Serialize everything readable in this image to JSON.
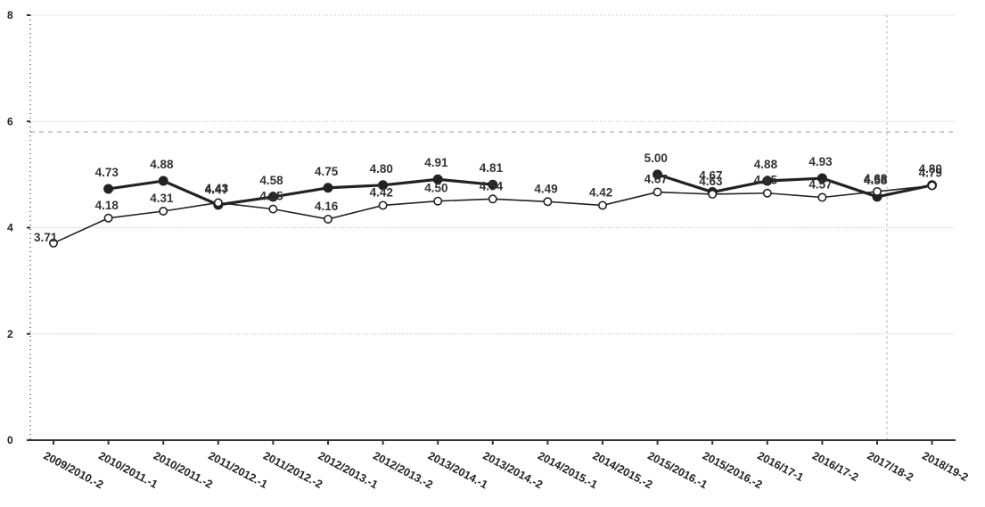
{
  "chart_data": {
    "type": "line",
    "title": "",
    "xlabel": "",
    "ylabel": "",
    "ylim": [
      0,
      8
    ],
    "yticks": [
      0,
      2,
      4,
      6,
      8
    ],
    "grid": true,
    "reference_line": 5.8,
    "categories": [
      "2009/2010.-2",
      "2010/2011.-1",
      "2010/2011.-2",
      "2011/2012.-1",
      "2011/2012.-2",
      "2012/2013.-1",
      "2012/2013.-2",
      "2013/2014.-1",
      "2013/2014.-2",
      "2014/2015.-1",
      "2014/2015.-2",
      "2015/2016.-1",
      "2015/2016.-2",
      "2016/17-1",
      "2016/17-2",
      "2017/18-2",
      "2018/19-2"
    ],
    "series": [
      {
        "style": "bold",
        "values": [
          null,
          4.73,
          4.88,
          4.43,
          4.58,
          4.75,
          4.8,
          4.91,
          4.81,
          null,
          null,
          5.0,
          4.67,
          4.88,
          4.93,
          4.58,
          4.8
        ],
        "labels": [
          "",
          "4.73",
          "4.88",
          "4.43",
          "4.58",
          "4.75",
          "4.80",
          "4.91",
          "4.81",
          "",
          "",
          "5.00",
          "4.67",
          "4.88",
          "4.93",
          "4.58",
          "4.80"
        ]
      },
      {
        "style": "thin",
        "values": [
          3.71,
          4.18,
          4.31,
          4.47,
          4.35,
          4.16,
          4.42,
          4.5,
          4.54,
          4.49,
          4.42,
          4.67,
          4.63,
          4.65,
          4.57,
          4.68,
          4.79
        ],
        "labels": [
          "3.71",
          "4.18",
          "4.31",
          "4.47",
          "4.35",
          "4.16",
          "4.42",
          "4.50",
          "4.54",
          "4.49",
          "4.42",
          "4.67",
          "4.63",
          "4.65",
          "4.57",
          "4.68",
          "4.79"
        ]
      }
    ],
    "colors": {
      "line": "#222222",
      "grid": "#b8b8b8",
      "axis": "#333333",
      "background": "#ffffff"
    }
  }
}
